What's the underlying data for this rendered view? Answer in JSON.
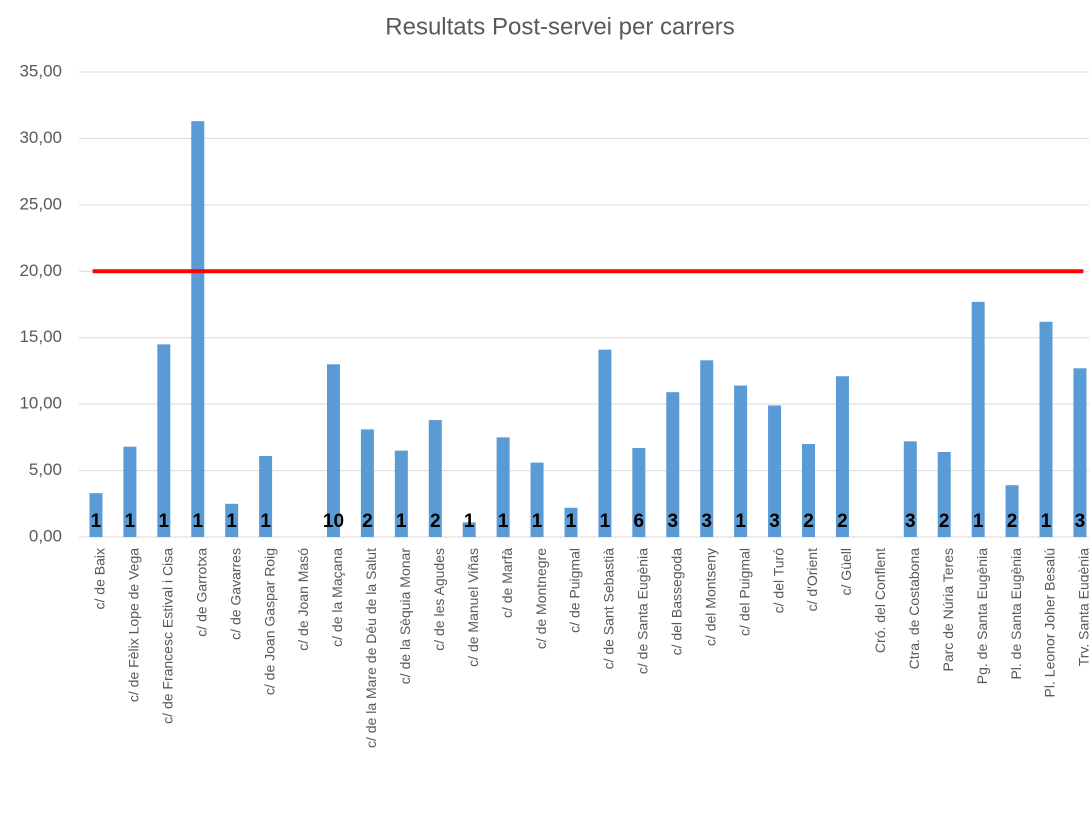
{
  "chart_data": {
    "type": "bar",
    "title": "Resultats Post-servei per carrers",
    "categories": [
      "c/ de Baix",
      "c/ de Fèlix Lope de Vega",
      "c/ de Francesc Estival i Cisa",
      "c/ de Garrotxa",
      "c/ de Gavarres",
      "c/ de Joan Gaspar Roig",
      "c/ de Joan Masó",
      "c/ de la Maçana",
      "c/ de la Mare de Déu de la Salut",
      "c/ de la Sèquia Monar",
      "c/ de les Agudes",
      "c/ de Manuel Viñas",
      "c/ de Marfà",
      "c/ de Montnegre",
      "c/ de Puigmal",
      "c/ de Sant Sebastià",
      "c/ de Santa Eugènia",
      "c/ del Bassegoda",
      "c/ del Montseny",
      "c/ del Puigmal",
      "c/ del Turó",
      "c/ d'Orient",
      "c/ Güell",
      "Cró. del Conflent",
      "Ctra. de Costabona",
      "Parc de Núria Teres",
      "Pg. de Santa Eugènia",
      "Pl. de Santa Eugènia",
      "Pl. Leonor Joher Besalú",
      "Trv. Santa Eugènia"
    ],
    "values": [
      3.3,
      6.8,
      14.5,
      31.3,
      2.5,
      6.1,
      null,
      13.0,
      8.1,
      6.5,
      8.8,
      1.1,
      7.5,
      5.6,
      2.2,
      14.1,
      6.7,
      10.9,
      13.3,
      11.4,
      9.9,
      7.0,
      12.1,
      null,
      7.2,
      6.4,
      17.7,
      3.9,
      16.2,
      12.7
    ],
    "bar_labels": [
      1,
      1,
      1,
      1,
      1,
      1,
      null,
      10,
      2,
      1,
      2,
      1,
      1,
      1,
      1,
      1,
      6,
      3,
      3,
      1,
      3,
      2,
      2,
      null,
      3,
      2,
      1,
      2,
      1,
      3
    ],
    "color": "#5b9bd5",
    "threshold": 20,
    "threshold_color": "#ff0000",
    "ylim": [
      0,
      35
    ],
    "yticks": [
      {
        "value": 0,
        "label": "0,00"
      },
      {
        "value": 5,
        "label": "5,00"
      },
      {
        "value": 10,
        "label": "10,00"
      },
      {
        "value": 15,
        "label": "15,00"
      },
      {
        "value": 20,
        "label": "20,00"
      },
      {
        "value": 25,
        "label": "25,00"
      },
      {
        "value": 30,
        "label": "30,00"
      },
      {
        "value": 35,
        "label": "35,00"
      }
    ],
    "grid": true
  }
}
